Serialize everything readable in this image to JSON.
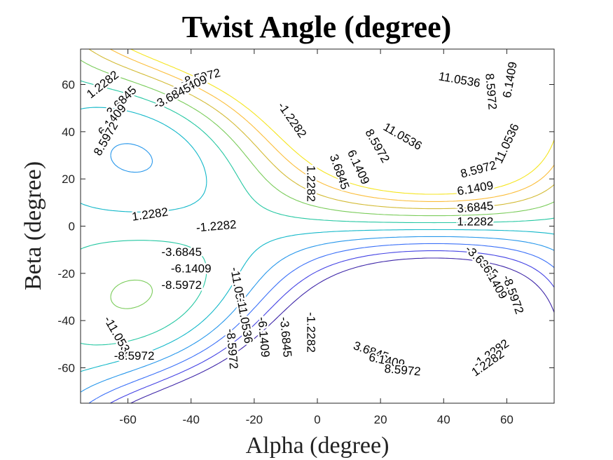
{
  "chart_data": {
    "type": "contour",
    "title": "Twist Angle (degree)",
    "xlabel": "Alpha (degree)",
    "ylabel": "Beta (degree)",
    "xlim": [
      -75,
      75
    ],
    "ylim": [
      -75,
      75
    ],
    "xticks": [
      -60,
      -40,
      -20,
      0,
      20,
      40,
      60
    ],
    "yticks": [
      -60,
      -40,
      -20,
      0,
      20,
      40,
      60
    ],
    "grid": false,
    "colormap": "parula",
    "levels": [
      -11.0536,
      -8.5972,
      -6.1409,
      -3.6845,
      -1.2282,
      1.2282,
      3.6845,
      6.1409,
      8.5972,
      11.0536
    ],
    "level_colors": [
      "#3e26a8",
      "#4443e4",
      "#3b70f8",
      "#2797eb",
      "#13b8c9",
      "#25c7a2",
      "#7acc5a",
      "#d3bb36",
      "#fbbe3c",
      "#f5e51f"
    ],
    "contour_labels": [
      {
        "text": "-8.5972",
        "x": -37,
        "y": 63,
        "angle": 14
      },
      {
        "text": "-6.1409",
        "x": -41,
        "y": 59,
        "angle": 24
      },
      {
        "text": "-3.6845",
        "x": -46,
        "y": 55,
        "angle": 28
      },
      {
        "text": "1.2282",
        "x": -68,
        "y": 60,
        "angle": 38
      },
      {
        "text": "3.6845",
        "x": -62,
        "y": 53,
        "angle": 45
      },
      {
        "text": "6.1409",
        "x": -65,
        "y": 45,
        "angle": 50
      },
      {
        "text": "8.5972",
        "x": -67,
        "y": 37,
        "angle": 60
      },
      {
        "text": "-1.2282",
        "x": -8,
        "y": 45,
        "angle": -55
      },
      {
        "text": "1.2282",
        "x": -53,
        "y": 5,
        "angle": 8
      },
      {
        "text": "-1.2282",
        "x": -32,
        "y": 0,
        "angle": 5
      },
      {
        "text": "-3.6845",
        "x": -43,
        "y": -11,
        "angle": 0
      },
      {
        "text": "-6.1409",
        "x": -40,
        "y": -18,
        "angle": 0
      },
      {
        "text": "-8.5972",
        "x": -43,
        "y": -25,
        "angle": 0
      },
      {
        "text": "-11.0536",
        "x": -25,
        "y": -27,
        "angle": -80
      },
      {
        "text": "-11.0536",
        "x": -63,
        "y": -47,
        "angle": -60
      },
      {
        "text": "-8.5972",
        "x": -58,
        "y": -55,
        "angle": 0
      },
      {
        "text": "-11.0536",
        "x": -23,
        "y": -40,
        "angle": -80
      },
      {
        "text": "-8.5972",
        "x": -27,
        "y": -52,
        "angle": -85
      },
      {
        "text": "-6.1409",
        "x": -17,
        "y": -47,
        "angle": -85
      },
      {
        "text": "-3.6845",
        "x": -10,
        "y": -47,
        "angle": -85
      },
      {
        "text": "-1.2282",
        "x": -2,
        "y": -45,
        "angle": -90
      },
      {
        "text": "1.2282",
        "x": -2,
        "y": 18,
        "angle": -90
      },
      {
        "text": "3.6845",
        "x": 7,
        "y": 23,
        "angle": -70
      },
      {
        "text": "6.1409",
        "x": 13,
        "y": 25,
        "angle": -65
      },
      {
        "text": "8.5972",
        "x": 19,
        "y": 34,
        "angle": -60
      },
      {
        "text": "11.0536",
        "x": 27,
        "y": 38,
        "angle": -30
      },
      {
        "text": "11.0536",
        "x": 45,
        "y": 62,
        "angle": -10
      },
      {
        "text": "8.5972",
        "x": 55,
        "y": 57,
        "angle": -85
      },
      {
        "text": "6.1409",
        "x": 61,
        "y": 62,
        "angle": 80
      },
      {
        "text": "11.0536",
        "x": 60,
        "y": 35,
        "angle": 65
      },
      {
        "text": "8.5972",
        "x": 51,
        "y": 24,
        "angle": 15
      },
      {
        "text": "6.1409",
        "x": 50,
        "y": 16,
        "angle": 10
      },
      {
        "text": "3.6845",
        "x": 50,
        "y": 8,
        "angle": 5
      },
      {
        "text": "1.2282",
        "x": 50,
        "y": 2,
        "angle": 0
      },
      {
        "text": "-3.6845",
        "x": 52,
        "y": -15,
        "angle": -45
      },
      {
        "text": "-6.1409",
        "x": 56,
        "y": -23,
        "angle": -60
      },
      {
        "text": "-8.5972",
        "x": 62,
        "y": -29,
        "angle": -70
      },
      {
        "text": "-1.2282",
        "x": 55,
        "y": -54,
        "angle": 35
      },
      {
        "text": "1.2282",
        "x": 54,
        "y": -58,
        "angle": 35
      },
      {
        "text": "3.6845",
        "x": 17,
        "y": -53,
        "angle": -20
      },
      {
        "text": "6.1409",
        "x": 22,
        "y": -57,
        "angle": -12
      },
      {
        "text": "8.5972",
        "x": 27,
        "y": -61,
        "angle": -5
      }
    ]
  }
}
